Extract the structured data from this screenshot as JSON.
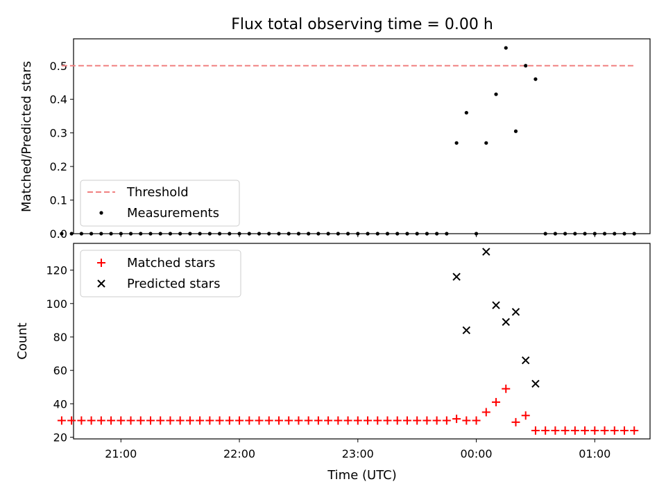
{
  "title": "Flux total observing time = 0.00 h",
  "chart_data": [
    {
      "type": "scatter",
      "ylabel": "Matched/Predicted stars",
      "xlabel": "",
      "xlim": [
        "20:36",
        "01:28"
      ],
      "ylim": [
        0,
        0.58
      ],
      "yticks": [
        "0.0",
        "0.1",
        "0.2",
        "0.3",
        "0.4",
        "0.5"
      ],
      "threshold": {
        "name": "Threshold",
        "value": 0.5,
        "x_range": [
          "20:30",
          "01:20"
        ],
        "color": "#f08080"
      },
      "series": [
        {
          "name": "Measurements",
          "color": "#000000",
          "x": [
            "20:30",
            "20:35",
            "20:40",
            "20:45",
            "20:50",
            "20:55",
            "21:00",
            "21:05",
            "21:10",
            "21:15",
            "21:20",
            "21:25",
            "21:30",
            "21:35",
            "21:40",
            "21:45",
            "21:50",
            "21:55",
            "22:00",
            "22:05",
            "22:10",
            "22:15",
            "22:20",
            "22:25",
            "22:30",
            "22:35",
            "22:40",
            "22:45",
            "22:50",
            "22:55",
            "23:00",
            "23:05",
            "23:10",
            "23:15",
            "23:20",
            "23:25",
            "23:30",
            "23:35",
            "23:40",
            "23:45",
            "23:50",
            "23:55",
            "00:00",
            "00:05",
            "00:10",
            "00:15",
            "00:20",
            "00:25",
            "00:30",
            "00:35",
            "00:40",
            "00:45",
            "00:50",
            "00:55",
            "01:00",
            "01:05",
            "01:10",
            "01:15",
            "01:20"
          ],
          "y": [
            0,
            0,
            0,
            0,
            0,
            0,
            0,
            0,
            0,
            0,
            0,
            0,
            0,
            0,
            0,
            0,
            0,
            0,
            0,
            0,
            0,
            0,
            0,
            0,
            0,
            0,
            0,
            0,
            0,
            0,
            0,
            0,
            0,
            0,
            0,
            0,
            0,
            0,
            0,
            0,
            0.27,
            0.36,
            0,
            0.27,
            0.415,
            0.553,
            0.305,
            0.5,
            0.46,
            0,
            0,
            0,
            0,
            0,
            0,
            0,
            0,
            0,
            0
          ]
        }
      ],
      "legend": {
        "position": "lower-left",
        "entries": [
          "Threshold",
          "Measurements"
        ]
      }
    },
    {
      "type": "scatter",
      "ylabel": "Count",
      "xlabel": "Time (UTC)",
      "xlim": [
        "20:36",
        "01:28"
      ],
      "ylim": [
        19,
        136
      ],
      "yticks": [
        "20",
        "40",
        "60",
        "80",
        "100",
        "120"
      ],
      "xticks": [
        "21:00",
        "22:00",
        "23:00",
        "00:00",
        "01:00"
      ],
      "series": [
        {
          "name": "Matched stars",
          "color": "#ff0000",
          "marker": "+",
          "x": [
            "20:30",
            "20:35",
            "20:40",
            "20:45",
            "20:50",
            "20:55",
            "21:00",
            "21:05",
            "21:10",
            "21:15",
            "21:20",
            "21:25",
            "21:30",
            "21:35",
            "21:40",
            "21:45",
            "21:50",
            "21:55",
            "22:00",
            "22:05",
            "22:10",
            "22:15",
            "22:20",
            "22:25",
            "22:30",
            "22:35",
            "22:40",
            "22:45",
            "22:50",
            "22:55",
            "23:00",
            "23:05",
            "23:10",
            "23:15",
            "23:20",
            "23:25",
            "23:30",
            "23:35",
            "23:40",
            "23:45",
            "23:50",
            "23:55",
            "00:00",
            "00:05",
            "00:10",
            "00:15",
            "00:20",
            "00:25",
            "00:30",
            "00:35",
            "00:40",
            "00:45",
            "00:50",
            "00:55",
            "01:00",
            "01:05",
            "01:10",
            "01:15",
            "01:20"
          ],
          "y": [
            30,
            30,
            30,
            30,
            30,
            30,
            30,
            30,
            30,
            30,
            30,
            30,
            30,
            30,
            30,
            30,
            30,
            30,
            30,
            30,
            30,
            30,
            30,
            30,
            30,
            30,
            30,
            30,
            30,
            30,
            30,
            30,
            30,
            30,
            30,
            30,
            30,
            30,
            30,
            30,
            31,
            30,
            30,
            35,
            41,
            49,
            29,
            33,
            24,
            24,
            24,
            24,
            24,
            24,
            24,
            24,
            24,
            24,
            24
          ]
        },
        {
          "name": "Predicted stars",
          "color": "#000000",
          "marker": "x",
          "x": [
            "23:50",
            "23:55",
            "00:05",
            "00:10",
            "00:15",
            "00:20",
            "00:25",
            "00:30"
          ],
          "y": [
            116,
            84,
            131,
            99,
            89,
            95,
            66,
            52
          ]
        }
      ],
      "legend": {
        "position": "top-left",
        "entries": [
          "Matched stars",
          "Predicted stars"
        ]
      }
    }
  ]
}
